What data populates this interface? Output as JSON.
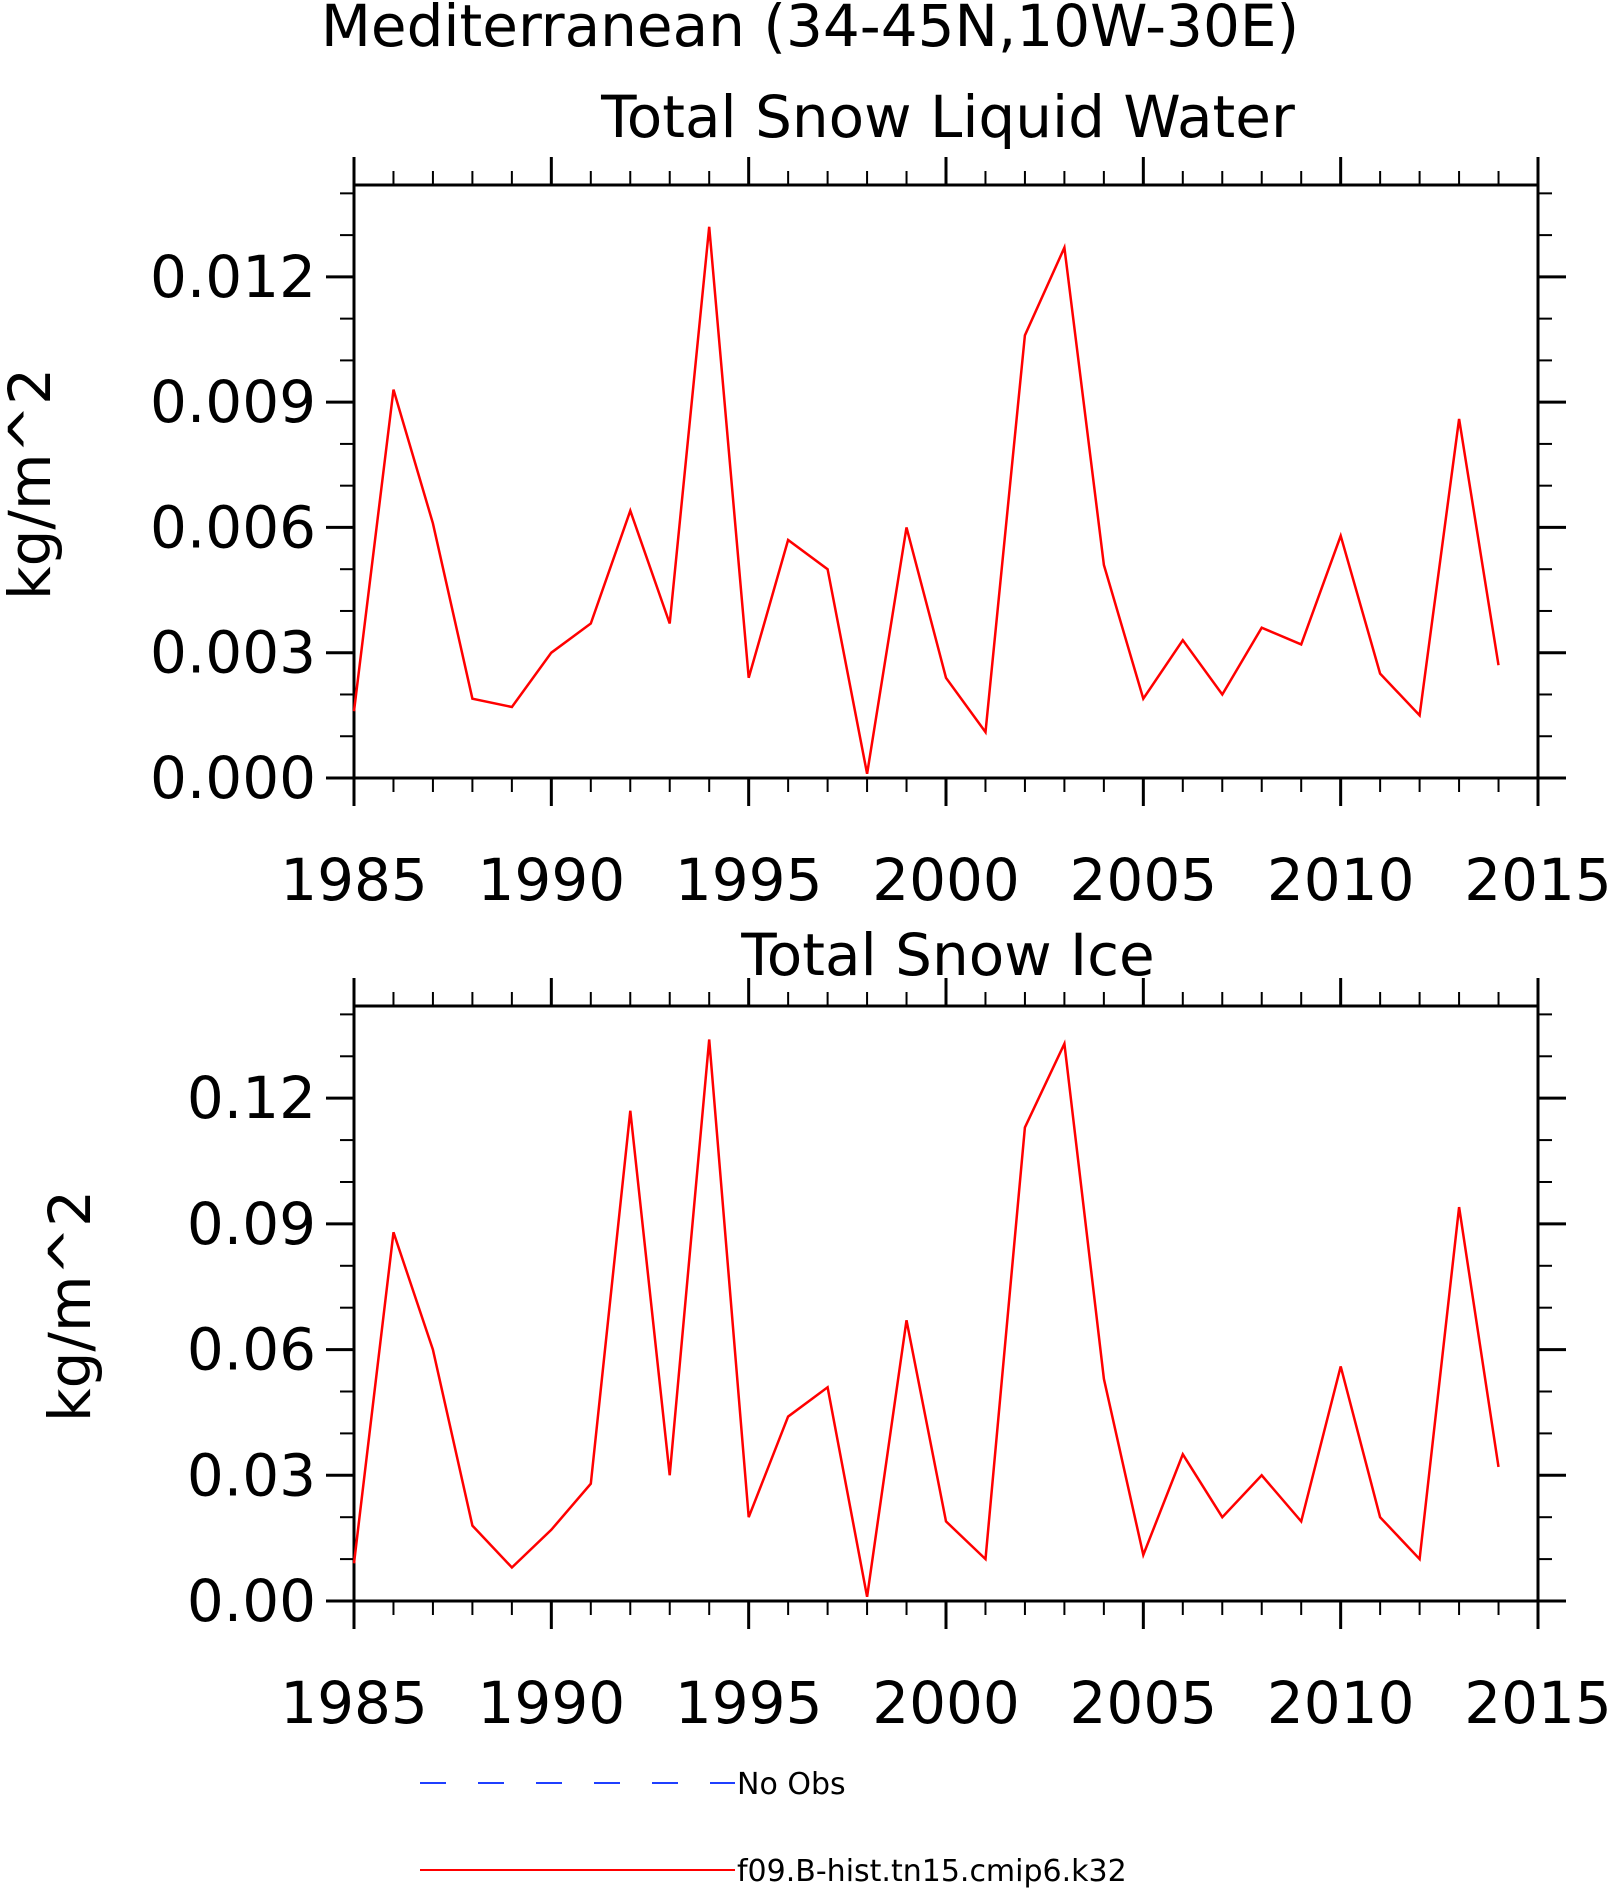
{
  "figure": {
    "title": "Mediterranean (34-45N,10W-30E)"
  },
  "legend": {
    "items": [
      {
        "label": "No Obs",
        "color": "#1f3fff",
        "style": "dashed"
      },
      {
        "label": "f09.B-hist.tn15.cmip6.k32",
        "color": "#ff0000",
        "style": "solid"
      }
    ]
  },
  "chart_data": [
    {
      "type": "line",
      "title": "Total Snow Liquid Water",
      "xlabel": "",
      "ylabel": "kg/m^2",
      "xlim": [
        1985,
        2015
      ],
      "ylim": [
        0,
        0.0142
      ],
      "x_ticks": [
        1985,
        1990,
        1995,
        2000,
        2005,
        2010,
        2015
      ],
      "y_ticks": [
        0.0,
        0.003,
        0.006,
        0.009,
        0.012
      ],
      "y_tick_labels": [
        "0.000",
        "0.003",
        "0.006",
        "0.009",
        "0.012"
      ],
      "grid": false,
      "series": [
        {
          "name": "f09.B-hist.tn15.cmip6.k32",
          "color": "#ff0000",
          "x": [
            1985,
            1986,
            1987,
            1988,
            1989,
            1990,
            1991,
            1992,
            1993,
            1994,
            1995,
            1996,
            1997,
            1998,
            1999,
            2000,
            2001,
            2002,
            2003,
            2004,
            2005,
            2006,
            2007,
            2008,
            2009,
            2010,
            2011,
            2012,
            2013,
            2014
          ],
          "y": [
            0.0016,
            0.0093,
            0.0061,
            0.0019,
            0.0017,
            0.003,
            0.0037,
            0.0064,
            0.0037,
            0.0132,
            0.0024,
            0.0057,
            0.005,
            0.0001,
            0.006,
            0.0024,
            0.0011,
            0.0106,
            0.0127,
            0.0051,
            0.0019,
            0.0033,
            0.002,
            0.0036,
            0.0032,
            0.0058,
            0.0025,
            0.0015,
            0.0086,
            0.0027
          ]
        }
      ]
    },
    {
      "type": "line",
      "title": "Total Snow Ice",
      "xlabel": "",
      "ylabel": "kg/m^2",
      "xlim": [
        1985,
        2015
      ],
      "ylim": [
        0,
        0.142
      ],
      "x_ticks": [
        1985,
        1990,
        1995,
        2000,
        2005,
        2010,
        2015
      ],
      "y_ticks": [
        0.0,
        0.03,
        0.06,
        0.09,
        0.12
      ],
      "y_tick_labels": [
        "0.00",
        "0.03",
        "0.06",
        "0.09",
        "0.12"
      ],
      "grid": false,
      "series": [
        {
          "name": "f09.B-hist.tn15.cmip6.k32",
          "color": "#ff0000",
          "x": [
            1985,
            1986,
            1987,
            1988,
            1989,
            1990,
            1991,
            1992,
            1993,
            1994,
            1995,
            1996,
            1997,
            1998,
            1999,
            2000,
            2001,
            2002,
            2003,
            2004,
            2005,
            2006,
            2007,
            2008,
            2009,
            2010,
            2011,
            2012,
            2013,
            2014
          ],
          "y": [
            0.009,
            0.088,
            0.06,
            0.018,
            0.008,
            0.017,
            0.028,
            0.117,
            0.03,
            0.134,
            0.02,
            0.044,
            0.051,
            0.001,
            0.067,
            0.019,
            0.01,
            0.113,
            0.133,
            0.053,
            0.011,
            0.035,
            0.02,
            0.03,
            0.019,
            0.056,
            0.02,
            0.01,
            0.094,
            0.032
          ]
        }
      ]
    }
  ]
}
